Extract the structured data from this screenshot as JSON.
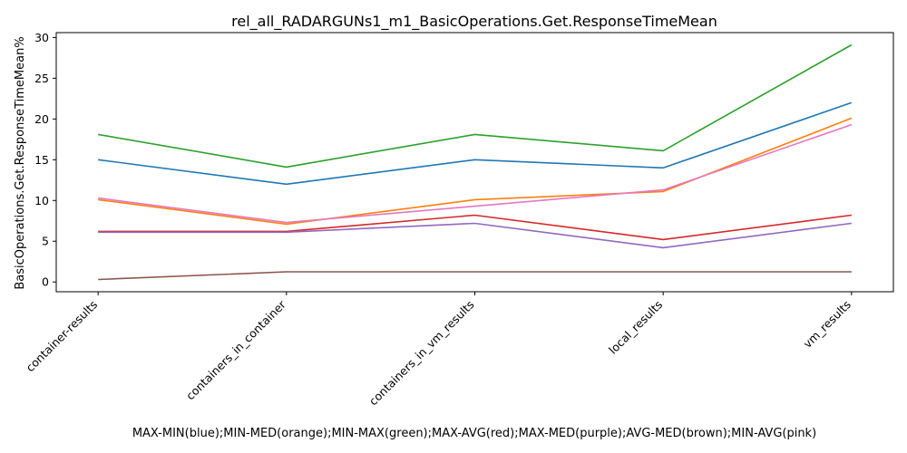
{
  "chart_data": {
    "type": "line",
    "title": "rel_all_RADARGUNs1_m1_BasicOperations.Get.ResponseTimeMean",
    "xlabel": "MAX-MIN(blue);MIN-MED(orange);MIN-MAX(green);MAX-AVG(red);MAX-MED(purple);AVG-MED(brown);MIN-AVG(pink)",
    "ylabel": "BasicOperations.Get.ResponseTimeMean%",
    "categories": [
      "container-results",
      "containers_in_container",
      "containers_in_vm_results",
      "local_results",
      "vm_results"
    ],
    "ylim": [
      -1.2,
      30.6
    ],
    "yticks": [
      0,
      5,
      10,
      15,
      20,
      25,
      30
    ],
    "grid": false,
    "legend": "none",
    "series": [
      {
        "color": "#1f77b4",
        "values": [
          15.0,
          12.0,
          15.0,
          14.0,
          22.0
        ]
      },
      {
        "color": "#ff7f0e",
        "values": [
          10.1,
          7.1,
          10.1,
          11.1,
          20.1
        ]
      },
      {
        "color": "#2ca02c",
        "values": [
          18.1,
          14.1,
          18.1,
          16.1,
          29.1
        ]
      },
      {
        "color": "#d62728",
        "values": [
          6.2,
          6.2,
          8.2,
          5.2,
          8.2
        ]
      },
      {
        "color": "#9467bd",
        "values": [
          6.1,
          6.1,
          7.2,
          4.2,
          7.2
        ]
      },
      {
        "color": "#8c564b",
        "values": [
          0.3,
          1.25,
          1.25,
          1.25,
          1.25
        ]
      },
      {
        "color": "#e377c2",
        "values": [
          10.3,
          7.3,
          9.3,
          11.3,
          19.3
        ]
      }
    ]
  }
}
